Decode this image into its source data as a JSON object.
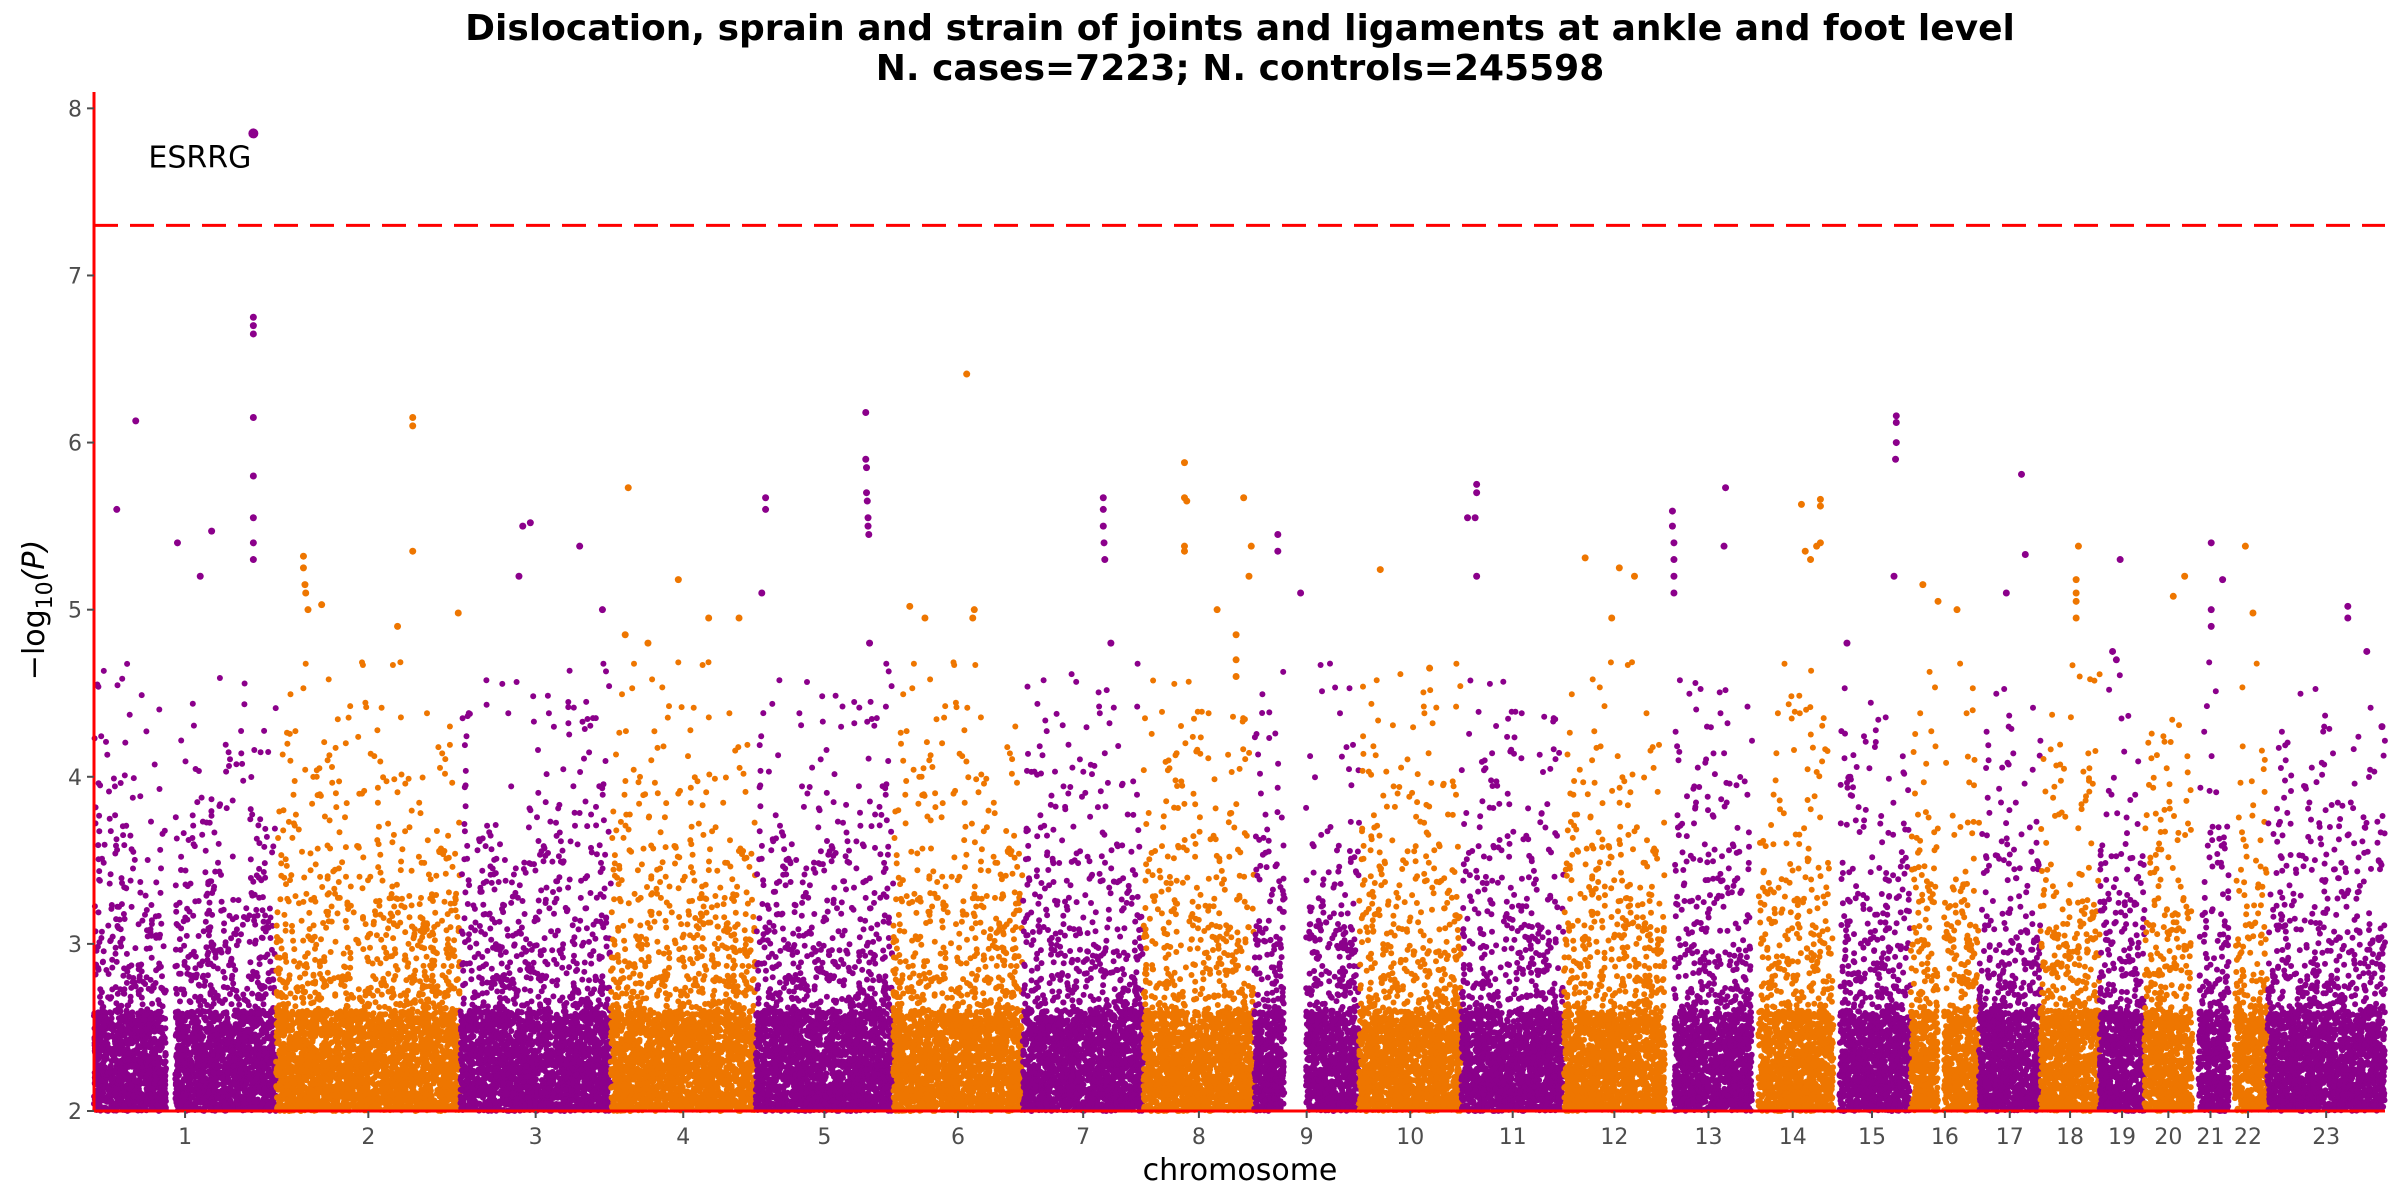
{
  "chart_data": {
    "type": "scatter",
    "subtype": "manhattan",
    "title": "Dislocation, sprain and strain of joints and ligaments at ankle and foot level",
    "subtitle": "N. cases=7223; N. controls=245598",
    "xlabel": "chromosome",
    "ylabel_prefix": "−log",
    "ylabel_sub": "10",
    "ylabel_suffix": "(P)",
    "ylim": [
      2,
      8.05
    ],
    "yticks": [
      2,
      3,
      4,
      5,
      6,
      7,
      8
    ],
    "significance_line": 7.3,
    "colors": {
      "odd": "#8b008b",
      "even": "#ee7600",
      "line": "#ff0000",
      "axis": "#ff0000"
    },
    "chromosomes": [
      {
        "label": "1",
        "start": 0,
        "length": 240,
        "gap": [
          95,
          107
        ]
      },
      {
        "label": "2",
        "start": 240,
        "length": 243
      },
      {
        "label": "3",
        "start": 483,
        "length": 198
      },
      {
        "label": "4",
        "start": 681,
        "length": 191
      },
      {
        "label": "5",
        "start": 872,
        "length": 181
      },
      {
        "label": "6",
        "start": 1053,
        "length": 171
      },
      {
        "label": "7",
        "start": 1224,
        "length": 159
      },
      {
        "label": "8",
        "start": 1383,
        "length": 146
      },
      {
        "label": "9",
        "start": 1529,
        "length": 138,
        "gap": [
          40,
          68
        ]
      },
      {
        "label": "10",
        "start": 1667,
        "length": 135
      },
      {
        "label": "11",
        "start": 1802,
        "length": 135
      },
      {
        "label": "12",
        "start": 1937,
        "length": 133
      },
      {
        "label": "13",
        "start": 2070,
        "length": 115,
        "gap": [
          0,
          12
        ]
      },
      {
        "label": "14",
        "start": 2185,
        "length": 107,
        "gap": [
          0,
          8
        ]
      },
      {
        "label": "15",
        "start": 2292,
        "length": 102,
        "gap": [
          0,
          8
        ]
      },
      {
        "label": "16",
        "start": 2394,
        "length": 90,
        "gap": [
          36,
          44
        ]
      },
      {
        "label": "17",
        "start": 2484,
        "length": 81
      },
      {
        "label": "18",
        "start": 2565,
        "length": 78
      },
      {
        "label": "19",
        "start": 2643,
        "length": 59
      },
      {
        "label": "20",
        "start": 2702,
        "length": 63
      },
      {
        "label": "21",
        "start": 2765,
        "length": 48,
        "gap": [
          0,
          8
        ]
      },
      {
        "label": "22",
        "start": 2813,
        "length": 51,
        "gap": [
          0,
          8
        ]
      },
      {
        "label": "23",
        "start": 2864,
        "length": 155
      }
    ],
    "x_total": 3019,
    "peaks": [
      {
        "x": 210,
        "y": 7.85,
        "label": "ESRRG"
      },
      {
        "x": 210,
        "y": 6.75
      },
      {
        "x": 210,
        "y": 6.7
      },
      {
        "x": 210,
        "y": 6.65
      },
      {
        "x": 210,
        "y": 6.15
      },
      {
        "x": 210,
        "y": 5.8
      },
      {
        "x": 210,
        "y": 5.55
      },
      {
        "x": 210,
        "y": 5.4
      },
      {
        "x": 210,
        "y": 5.3
      },
      {
        "x": 55,
        "y": 6.13
      },
      {
        "x": 30,
        "y": 5.6
      },
      {
        "x": 110,
        "y": 5.4
      },
      {
        "x": 155,
        "y": 5.47
      },
      {
        "x": 140,
        "y": 5.2
      },
      {
        "x": 276,
        "y": 5.32
      },
      {
        "x": 276,
        "y": 5.25
      },
      {
        "x": 278,
        "y": 5.15
      },
      {
        "x": 279,
        "y": 5.1
      },
      {
        "x": 282,
        "y": 5.0
      },
      {
        "x": 300,
        "y": 5.03
      },
      {
        "x": 420,
        "y": 6.15
      },
      {
        "x": 420,
        "y": 6.1
      },
      {
        "x": 420,
        "y": 5.35
      },
      {
        "x": 400,
        "y": 4.9
      },
      {
        "x": 480,
        "y": 4.98
      },
      {
        "x": 575,
        "y": 5.52
      },
      {
        "x": 565,
        "y": 5.5
      },
      {
        "x": 640,
        "y": 5.38
      },
      {
        "x": 670,
        "y": 5.0
      },
      {
        "x": 560,
        "y": 5.2
      },
      {
        "x": 704,
        "y": 5.73
      },
      {
        "x": 700,
        "y": 4.85
      },
      {
        "x": 730,
        "y": 4.8
      },
      {
        "x": 770,
        "y": 5.18
      },
      {
        "x": 810,
        "y": 4.95
      },
      {
        "x": 850,
        "y": 4.95
      },
      {
        "x": 885,
        "y": 5.67
      },
      {
        "x": 885,
        "y": 5.6
      },
      {
        "x": 880,
        "y": 5.1
      },
      {
        "x": 1017,
        "y": 6.18
      },
      {
        "x": 1017,
        "y": 5.9
      },
      {
        "x": 1018,
        "y": 5.85
      },
      {
        "x": 1018,
        "y": 5.7
      },
      {
        "x": 1019,
        "y": 5.65
      },
      {
        "x": 1020,
        "y": 5.55
      },
      {
        "x": 1020,
        "y": 5.5
      },
      {
        "x": 1021,
        "y": 5.45
      },
      {
        "x": 1022,
        "y": 4.8
      },
      {
        "x": 1150,
        "y": 6.41
      },
      {
        "x": 1160,
        "y": 5.0
      },
      {
        "x": 1158,
        "y": 4.95
      },
      {
        "x": 1075,
        "y": 5.02
      },
      {
        "x": 1095,
        "y": 4.95
      },
      {
        "x": 1330,
        "y": 5.67
      },
      {
        "x": 1330,
        "y": 5.6
      },
      {
        "x": 1330,
        "y": 5.5
      },
      {
        "x": 1331,
        "y": 5.4
      },
      {
        "x": 1332,
        "y": 5.3
      },
      {
        "x": 1340,
        "y": 4.8
      },
      {
        "x": 1437,
        "y": 5.88
      },
      {
        "x": 1437,
        "y": 5.67
      },
      {
        "x": 1440,
        "y": 5.65
      },
      {
        "x": 1437,
        "y": 5.38
      },
      {
        "x": 1437,
        "y": 5.35
      },
      {
        "x": 1480,
        "y": 5.0
      },
      {
        "x": 1515,
        "y": 5.67
      },
      {
        "x": 1525,
        "y": 5.38
      },
      {
        "x": 1522,
        "y": 5.2
      },
      {
        "x": 1505,
        "y": 4.85
      },
      {
        "x": 1505,
        "y": 4.7
      },
      {
        "x": 1505,
        "y": 4.6
      },
      {
        "x": 1560,
        "y": 5.45
      },
      {
        "x": 1560,
        "y": 5.35
      },
      {
        "x": 1590,
        "y": 5.1
      },
      {
        "x": 1695,
        "y": 5.24
      },
      {
        "x": 1760,
        "y": 4.65
      },
      {
        "x": 1822,
        "y": 5.75
      },
      {
        "x": 1822,
        "y": 5.7
      },
      {
        "x": 1820,
        "y": 5.55
      },
      {
        "x": 1810,
        "y": 5.55
      },
      {
        "x": 1822,
        "y": 5.2
      },
      {
        "x": 1965,
        "y": 5.31
      },
      {
        "x": 2010,
        "y": 5.25
      },
      {
        "x": 2030,
        "y": 5.2
      },
      {
        "x": 2000,
        "y": 4.95
      },
      {
        "x": 2080,
        "y": 5.59
      },
      {
        "x": 2080,
        "y": 5.5
      },
      {
        "x": 2082,
        "y": 5.4
      },
      {
        "x": 2082,
        "y": 5.3
      },
      {
        "x": 2082,
        "y": 5.2
      },
      {
        "x": 2082,
        "y": 5.1
      },
      {
        "x": 2150,
        "y": 5.73
      },
      {
        "x": 2148,
        "y": 5.38
      },
      {
        "x": 2250,
        "y": 5.63
      },
      {
        "x": 2275,
        "y": 5.66
      },
      {
        "x": 2275,
        "y": 5.62
      },
      {
        "x": 2275,
        "y": 5.4
      },
      {
        "x": 2270,
        "y": 5.38
      },
      {
        "x": 2255,
        "y": 5.35
      },
      {
        "x": 2262,
        "y": 5.3
      },
      {
        "x": 2375,
        "y": 6.16
      },
      {
        "x": 2375,
        "y": 6.12
      },
      {
        "x": 2375,
        "y": 6.0
      },
      {
        "x": 2374,
        "y": 5.9
      },
      {
        "x": 2372,
        "y": 5.2
      },
      {
        "x": 2310,
        "y": 4.8
      },
      {
        "x": 2410,
        "y": 5.15
      },
      {
        "x": 2430,
        "y": 5.05
      },
      {
        "x": 2455,
        "y": 5.0
      },
      {
        "x": 2540,
        "y": 5.81
      },
      {
        "x": 2545,
        "y": 5.33
      },
      {
        "x": 2520,
        "y": 5.1
      },
      {
        "x": 2615,
        "y": 5.38
      },
      {
        "x": 2612,
        "y": 5.18
      },
      {
        "x": 2612,
        "y": 5.1
      },
      {
        "x": 2612,
        "y": 5.05
      },
      {
        "x": 2612,
        "y": 4.95
      },
      {
        "x": 2670,
        "y": 5.3
      },
      {
        "x": 2660,
        "y": 4.75
      },
      {
        "x": 2665,
        "y": 4.7
      },
      {
        "x": 2755,
        "y": 5.2
      },
      {
        "x": 2740,
        "y": 5.08
      },
      {
        "x": 2790,
        "y": 5.4
      },
      {
        "x": 2790,
        "y": 5.0
      },
      {
        "x": 2790,
        "y": 4.9
      },
      {
        "x": 2805,
        "y": 5.18
      },
      {
        "x": 2835,
        "y": 5.38
      },
      {
        "x": 2845,
        "y": 4.98
      },
      {
        "x": 2970,
        "y": 5.02
      },
      {
        "x": 2970,
        "y": 4.95
      },
      {
        "x": 2995,
        "y": 4.75
      },
      {
        "x": 3015,
        "y": 4.3
      }
    ]
  }
}
